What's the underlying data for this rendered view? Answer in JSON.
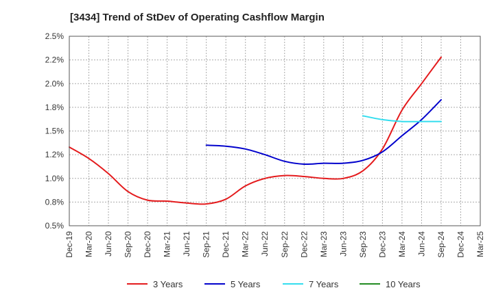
{
  "chart_data": {
    "type": "line",
    "title": "[3434]  Trend of StDev of Operating Cashflow Margin",
    "xlabel": "",
    "ylabel": "",
    "ylim": [
      0.5,
      2.5
    ],
    "y_ticks": [
      "0.5%",
      "0.8%",
      "1.0%",
      "1.2%",
      "1.5%",
      "1.8%",
      "2.0%",
      "2.2%",
      "2.5%"
    ],
    "y_tick_values": [
      0.5,
      0.75,
      1.0,
      1.25,
      1.5,
      1.75,
      2.0,
      2.25,
      2.5
    ],
    "categories": [
      "Dec-19",
      "Mar-20",
      "Jun-20",
      "Sep-20",
      "Dec-20",
      "Mar-21",
      "Jun-21",
      "Sep-21",
      "Dec-21",
      "Mar-22",
      "Jun-22",
      "Sep-22",
      "Dec-22",
      "Mar-23",
      "Jun-23",
      "Sep-23",
      "Dec-23",
      "Mar-24",
      "Jun-24",
      "Sep-24",
      "Dec-24",
      "Mar-25"
    ],
    "grid": true,
    "legend_position": "bottom",
    "series": [
      {
        "name": "3 Years",
        "color": "#e41a1c",
        "values": [
          1.33,
          1.21,
          1.05,
          0.86,
          0.77,
          0.76,
          0.74,
          0.73,
          0.78,
          0.92,
          1.0,
          1.03,
          1.02,
          1.0,
          1.0,
          1.08,
          1.31,
          1.72,
          2.0,
          2.28,
          null,
          null
        ]
      },
      {
        "name": "5 Years",
        "color": "#0000cc",
        "values": [
          null,
          null,
          null,
          null,
          null,
          null,
          null,
          1.35,
          1.34,
          1.31,
          1.25,
          1.18,
          1.15,
          1.16,
          1.16,
          1.19,
          1.28,
          1.45,
          1.62,
          1.83,
          null,
          null
        ]
      },
      {
        "name": "7 Years",
        "color": "#33ddee",
        "values": [
          null,
          null,
          null,
          null,
          null,
          null,
          null,
          null,
          null,
          null,
          null,
          null,
          null,
          null,
          null,
          1.66,
          1.62,
          1.6,
          1.6,
          1.6,
          null,
          null
        ]
      },
      {
        "name": "10 Years",
        "color": "#228b22",
        "values": [
          null,
          null,
          null,
          null,
          null,
          null,
          null,
          null,
          null,
          null,
          null,
          null,
          null,
          null,
          null,
          null,
          null,
          null,
          null,
          null,
          null,
          null
        ]
      }
    ]
  }
}
